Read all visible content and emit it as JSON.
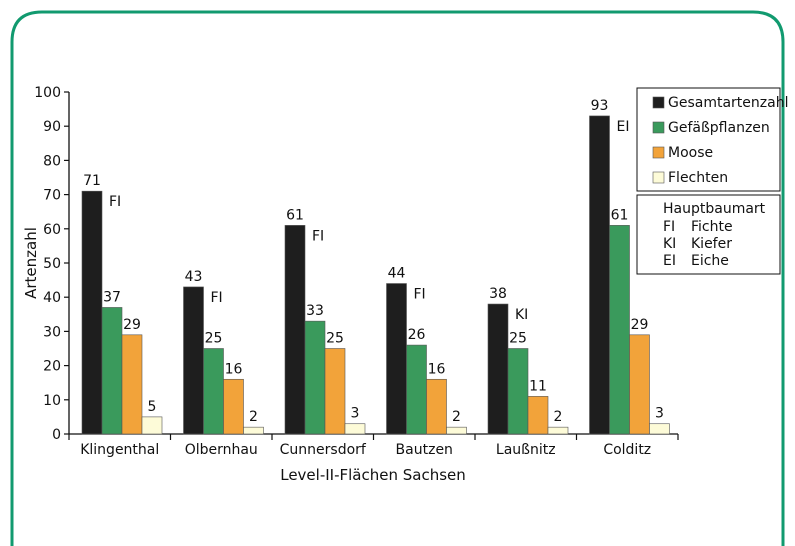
{
  "chart_data": {
    "type": "bar",
    "categories": [
      "Klingenthal",
      "Olbernhau",
      "Cunnersdorf",
      "Bautzen",
      "Laußnitz",
      "Colditz"
    ],
    "series": [
      {
        "name": "Gesamtartenzahl",
        "values": [
          71,
          43,
          61,
          44,
          38,
          93
        ],
        "color": "#1e1e1e"
      },
      {
        "name": "Gefäßpflanzen",
        "values": [
          37,
          25,
          33,
          26,
          25,
          61
        ],
        "color": "#3a9a5c"
      },
      {
        "name": "Moose",
        "values": [
          29,
          16,
          25,
          16,
          11,
          29
        ],
        "color": "#f2a33a"
      },
      {
        "name": "Flechten",
        "values": [
          5,
          2,
          3,
          2,
          2,
          3
        ],
        "color": "#fdfbd8"
      }
    ],
    "tree_codes": [
      "FI",
      "FI",
      "FI",
      "FI",
      "KI",
      "EI"
    ],
    "xlabel": "Level-II-Flächen Sachsen",
    "ylabel": "Artenzahl",
    "ylim": [
      0,
      100
    ],
    "yticks": [
      0,
      10,
      20,
      30,
      40,
      50,
      60,
      70,
      80,
      90,
      100
    ],
    "legend_placement": "top-right",
    "grid": false,
    "key_box": {
      "title": "Hauptbaumart",
      "rows": [
        {
          "code": "FI",
          "name": "Fichte"
        },
        {
          "code": "KI",
          "name": "Kiefer"
        },
        {
          "code": "EI",
          "name": "Eiche"
        }
      ]
    },
    "frame_color": "#119a6f"
  }
}
